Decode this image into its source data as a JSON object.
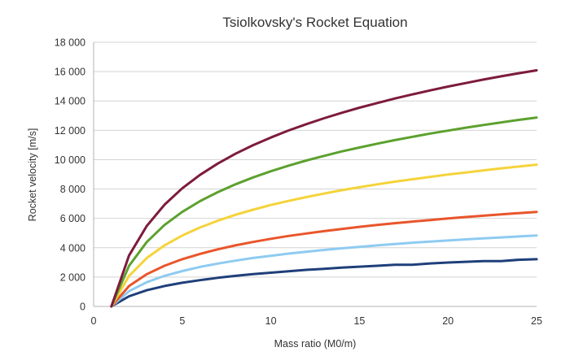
{
  "chart_data": {
    "type": "line",
    "title": "Tsiolkovsky's Rocket Equation",
    "xlabel": "Mass ratio (M0/m)",
    "ylabel": "Rocket velocity [m/s]",
    "xlim": [
      0,
      25
    ],
    "ylim": [
      0,
      18000
    ],
    "x_ticks": [
      0,
      5,
      10,
      15,
      20,
      25
    ],
    "y_ticks": [
      0,
      2000,
      4000,
      6000,
      8000,
      10000,
      12000,
      14000,
      16000,
      18000
    ],
    "x_tick_labels": [
      "0",
      "5",
      "10",
      "15",
      "20",
      "25"
    ],
    "y_tick_labels": [
      "0",
      "2 000",
      "4 000",
      "6 000",
      "8 000",
      "10 000",
      "12 000",
      "14 000",
      "16 000",
      "18 000"
    ],
    "grid": "horizontal",
    "legend": "none",
    "x": [
      1,
      2,
      3,
      4,
      5,
      6,
      7,
      8,
      9,
      10,
      11,
      12,
      13,
      14,
      15,
      16,
      17,
      18,
      19,
      20,
      21,
      22,
      23,
      24,
      25
    ],
    "series": [
      {
        "color": "#1f3f7a",
        "values": [
          0,
          690,
          1100,
          1390,
          1610,
          1790,
          1950,
          2080,
          2200,
          2300,
          2400,
          2490,
          2560,
          2640,
          2710,
          2770,
          2840,
          2840,
          2930,
          2990,
          3040,
          3090,
          3090,
          3180,
          3220
        ]
      },
      {
        "color": "#8ecbf1",
        "values": [
          0,
          1040,
          1650,
          2080,
          2410,
          2690,
          2920,
          3120,
          3300,
          3450,
          3600,
          3730,
          3850,
          3960,
          4060,
          4160,
          4250,
          4340,
          4420,
          4490,
          4570,
          4640,
          4700,
          4770,
          4830
        ]
      },
      {
        "color": "#e9552b",
        "values": [
          0,
          1390,
          2200,
          2770,
          3220,
          3580,
          3890,
          4160,
          4390,
          4610,
          4800,
          4970,
          5130,
          5280,
          5420,
          5550,
          5670,
          5780,
          5890,
          5990,
          6090,
          6180,
          6270,
          6360,
          6440
        ]
      },
      {
        "color": "#f5d33a",
        "values": [
          0,
          2080,
          3300,
          4160,
          4830,
          5380,
          5840,
          6240,
          6590,
          6910,
          7190,
          7450,
          7690,
          7920,
          8120,
          8320,
          8500,
          8670,
          8830,
          8990,
          9130,
          9270,
          9410,
          9530,
          9660
        ]
      },
      {
        "color": "#5ca12e",
        "values": [
          0,
          2770,
          4390,
          5550,
          6440,
          7170,
          7780,
          8320,
          8790,
          9210,
          9590,
          9940,
          10260,
          10560,
          10830,
          11090,
          11330,
          11560,
          11780,
          11980,
          12180,
          12360,
          12540,
          12710,
          12870
        ]
      },
      {
        "color": "#7d1b3d",
        "values": [
          0,
          3470,
          5490,
          6930,
          8050,
          8960,
          9730,
          10400,
          10990,
          11510,
          11990,
          12420,
          12820,
          13190,
          13540,
          13860,
          14170,
          14450,
          14720,
          14980,
          15220,
          15460,
          15680,
          15890,
          16090
        ]
      }
    ]
  }
}
